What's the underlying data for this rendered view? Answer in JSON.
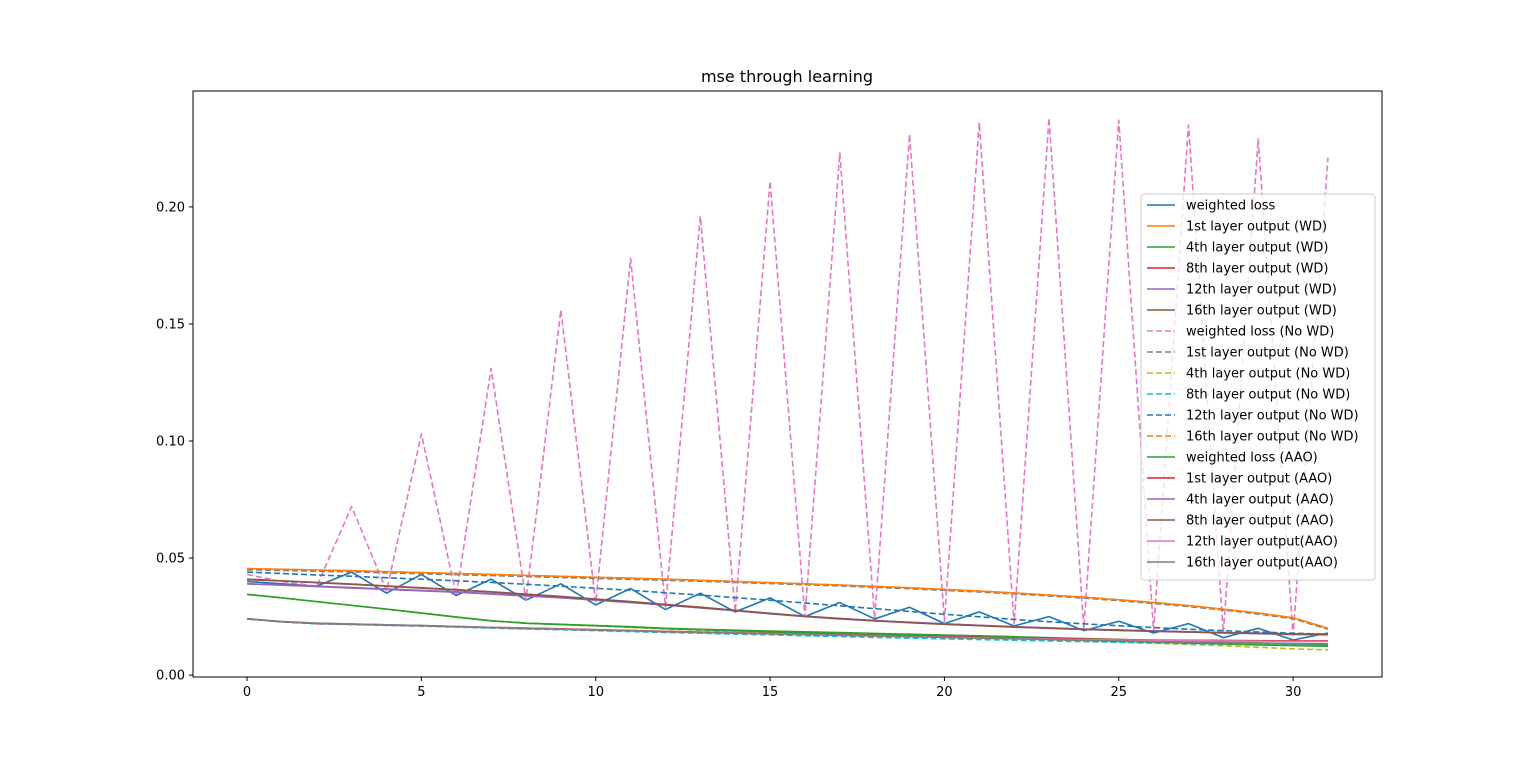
{
  "chart_data": {
    "type": "line",
    "title": "mse through learning",
    "xlabel": "",
    "ylabel": "",
    "xlim": [
      -1.55,
      32.55
    ],
    "ylim": [
      -0.0008,
      0.2495
    ],
    "xticks": [
      0,
      5,
      10,
      15,
      20,
      25,
      30
    ],
    "yticks": [
      "0.00",
      "0.05",
      "0.10",
      "0.15",
      "0.20"
    ],
    "ytick_values": [
      0.0,
      0.05,
      0.1,
      0.15,
      0.2
    ],
    "grid": false,
    "legend_position": "right",
    "x": [
      0,
      1,
      2,
      3,
      4,
      5,
      6,
      7,
      8,
      9,
      10,
      11,
      12,
      13,
      14,
      15,
      16,
      17,
      18,
      19,
      20,
      21,
      22,
      23,
      24,
      25,
      26,
      27,
      28,
      29,
      30,
      31
    ],
    "series": [
      {
        "name": "weighted loss",
        "color": "#1f77b4",
        "dash": "solid",
        "values": [
          0.04,
          0.039,
          0.038,
          0.044,
          0.035,
          0.043,
          0.034,
          0.041,
          0.032,
          0.039,
          0.03,
          0.037,
          0.028,
          0.035,
          0.027,
          0.033,
          0.025,
          0.031,
          0.024,
          0.029,
          0.022,
          0.027,
          0.021,
          0.025,
          0.019,
          0.023,
          0.018,
          0.022,
          0.016,
          0.02,
          0.015,
          0.018
        ]
      },
      {
        "name": "1st layer output (WD)",
        "color": "#ff7f0e",
        "dash": "solid",
        "values": [
          0.0455,
          0.0452,
          0.0449,
          0.0446,
          0.0442,
          0.0438,
          0.0434,
          0.043,
          0.0426,
          0.0422,
          0.0418,
          0.0414,
          0.041,
          0.0405,
          0.04,
          0.0395,
          0.039,
          0.0385,
          0.0379,
          0.0373,
          0.0366,
          0.0359,
          0.0351,
          0.0342,
          0.0333,
          0.0322,
          0.031,
          0.0297,
          0.0282,
          0.0265,
          0.0245,
          0.02
        ]
      },
      {
        "name": "4th layer output (WD)",
        "color": "#2ca02c",
        "dash": "solid",
        "values": [
          0.0345,
          0.033,
          0.0314,
          0.0298,
          0.0282,
          0.0265,
          0.0248,
          0.0232,
          0.0222,
          0.0217,
          0.0212,
          0.0207,
          0.02,
          0.0196,
          0.0192,
          0.0188,
          0.0185,
          0.0182,
          0.0178,
          0.0175,
          0.0171,
          0.0168,
          0.0164,
          0.016,
          0.0156,
          0.0152,
          0.0148,
          0.0144,
          0.014,
          0.0137,
          0.0133,
          0.013
        ]
      },
      {
        "name": "8th layer output (WD)",
        "color": "#d62728",
        "dash": "solid",
        "values": [
          0.024,
          0.0228,
          0.022,
          0.0217,
          0.0214,
          0.0211,
          0.0207,
          0.0203,
          0.02,
          0.0197,
          0.0193,
          0.019,
          0.0186,
          0.0183,
          0.018,
          0.0177,
          0.0174,
          0.0171,
          0.0168,
          0.0165,
          0.0163,
          0.016,
          0.0158,
          0.0155,
          0.0153,
          0.0151,
          0.0149,
          0.0148,
          0.0147,
          0.0146,
          0.0145,
          0.0145
        ]
      },
      {
        "name": "12th layer output (WD)",
        "color": "#9467bd",
        "dash": "solid",
        "values": [
          0.039,
          0.0384,
          0.0378,
          0.0372,
          0.0366,
          0.036,
          0.0354,
          0.0346,
          0.0338,
          0.033,
          0.032,
          0.031,
          0.0299,
          0.0287,
          0.0275,
          0.0262,
          0.025,
          0.024,
          0.0232,
          0.0225,
          0.0218,
          0.0212,
          0.0206,
          0.0201,
          0.0196,
          0.0192,
          0.0188,
          0.0184,
          0.018,
          0.0177,
          0.0174,
          0.0172
        ]
      },
      {
        "name": "16th layer output (WD)",
        "color": "#8c564b",
        "dash": "solid",
        "values": [
          0.041,
          0.0403,
          0.0396,
          0.0389,
          0.0381,
          0.0373,
          0.0365,
          0.0356,
          0.0346,
          0.0336,
          0.0325,
          0.0314,
          0.0302,
          0.029,
          0.0277,
          0.0264,
          0.0252,
          0.0242,
          0.0233,
          0.0225,
          0.0218,
          0.0212,
          0.0206,
          0.0201,
          0.0196,
          0.0192,
          0.0188,
          0.0185,
          0.0182,
          0.0179,
          0.0176,
          0.0175
        ]
      },
      {
        "name": "weighted loss (No WD)",
        "color": "#e377c2",
        "dash": "dashed",
        "values": [
          0.043,
          0.04,
          0.038,
          0.072,
          0.036,
          0.103,
          0.034,
          0.131,
          0.032,
          0.156,
          0.031,
          0.178,
          0.029,
          0.196,
          0.027,
          0.211,
          0.025,
          0.223,
          0.024,
          0.231,
          0.023,
          0.236,
          0.022,
          0.238,
          0.02,
          0.237,
          0.019,
          0.235,
          0.018,
          0.229,
          0.017,
          0.221
        ]
      },
      {
        "name": "1st layer output (No WD)",
        "color": "#7f7f7f",
        "dash": "dashed",
        "values": [
          0.045,
          0.0447,
          0.0444,
          0.0441,
          0.0437,
          0.0433,
          0.0429,
          0.0425,
          0.0421,
          0.0417,
          0.0413,
          0.0409,
          0.0405,
          0.0401,
          0.0396,
          0.0391,
          0.0386,
          0.0381,
          0.0375,
          0.0369,
          0.0362,
          0.0355,
          0.0347,
          0.0338,
          0.0329,
          0.0318,
          0.0306,
          0.0293,
          0.0278,
          0.0261,
          0.0241,
          0.0196
        ]
      },
      {
        "name": "4th layer output (No WD)",
        "color": "#bcbd22",
        "dash": "dashed",
        "values": [
          0.0345,
          0.033,
          0.0314,
          0.0298,
          0.0282,
          0.0265,
          0.0248,
          0.0232,
          0.0222,
          0.0216,
          0.021,
          0.0204,
          0.0197,
          0.0192,
          0.0187,
          0.0183,
          0.0179,
          0.0175,
          0.0171,
          0.0167,
          0.0163,
          0.0159,
          0.0155,
          0.0151,
          0.0146,
          0.0141,
          0.0136,
          0.0131,
          0.0125,
          0.0119,
          0.0112,
          0.0108
        ]
      },
      {
        "name": "8th layer output (No WD)",
        "color": "#17becf",
        "dash": "dashed",
        "values": [
          0.024,
          0.0227,
          0.0219,
          0.0216,
          0.0212,
          0.0209,
          0.0205,
          0.0201,
          0.0197,
          0.0194,
          0.019,
          0.0186,
          0.0182,
          0.0179,
          0.0175,
          0.0172,
          0.0168,
          0.0165,
          0.0161,
          0.0158,
          0.0155,
          0.0152,
          0.0149,
          0.0146,
          0.0143,
          0.014,
          0.0137,
          0.0135,
          0.0132,
          0.013,
          0.0128,
          0.0126
        ]
      },
      {
        "name": "12th layer output (No WD)",
        "color": "#1f77b4",
        "dash": "dashed",
        "values": [
          0.044,
          0.0434,
          0.0428,
          0.0422,
          0.0416,
          0.041,
          0.0403,
          0.0396,
          0.0388,
          0.038,
          0.0371,
          0.0362,
          0.0352,
          0.0342,
          0.0331,
          0.032,
          0.0308,
          0.0296,
          0.0284,
          0.0272,
          0.026,
          0.0249,
          0.0238,
          0.0228,
          0.0219,
          0.0211,
          0.0203,
          0.0196,
          0.019,
          0.0184,
          0.0179,
          0.0175
        ]
      },
      {
        "name": "16th layer output (No WD)",
        "color": "#ff7f0e",
        "dash": "dashed",
        "values": [
          0.0455,
          0.0452,
          0.0449,
          0.0446,
          0.0442,
          0.0438,
          0.0434,
          0.043,
          0.0426,
          0.0422,
          0.0418,
          0.0414,
          0.041,
          0.0405,
          0.04,
          0.0395,
          0.039,
          0.0385,
          0.0379,
          0.0373,
          0.0366,
          0.0359,
          0.0351,
          0.0342,
          0.0333,
          0.0322,
          0.031,
          0.0297,
          0.0282,
          0.0265,
          0.0245,
          0.02
        ]
      },
      {
        "name": "weighted loss (AAO)",
        "color": "#2ca02c",
        "dash": "solid",
        "values": [
          0.0345,
          0.033,
          0.0314,
          0.0298,
          0.0282,
          0.0265,
          0.0248,
          0.0232,
          0.0222,
          0.0216,
          0.0211,
          0.0205,
          0.0199,
          0.0194,
          0.0189,
          0.0185,
          0.0181,
          0.0177,
          0.0173,
          0.0169,
          0.0165,
          0.0161,
          0.0157,
          0.0153,
          0.0149,
          0.0145,
          0.0141,
          0.0137,
          0.0133,
          0.0129,
          0.0126,
          0.0123
        ]
      },
      {
        "name": "1st layer output (AAO)",
        "color": "#d62728",
        "dash": "solid",
        "values": [
          0.024,
          0.0228,
          0.0221,
          0.0218,
          0.0215,
          0.0212,
          0.0208,
          0.0204,
          0.0201,
          0.0198,
          0.0194,
          0.0191,
          0.0187,
          0.0184,
          0.0181,
          0.0178,
          0.0175,
          0.0172,
          0.0169,
          0.0166,
          0.0164,
          0.0161,
          0.0159,
          0.0156,
          0.0154,
          0.0152,
          0.015,
          0.0149,
          0.0148,
          0.0147,
          0.0146,
          0.0146
        ]
      },
      {
        "name": "4th layer output (AAO)",
        "color": "#9467bd",
        "dash": "solid",
        "values": [
          0.039,
          0.0385,
          0.038,
          0.0374,
          0.0368,
          0.0362,
          0.0356,
          0.0348,
          0.034,
          0.0331,
          0.0321,
          0.0311,
          0.03,
          0.0288,
          0.0276,
          0.0263,
          0.0251,
          0.0241,
          0.0233,
          0.0226,
          0.0219,
          0.0213,
          0.0207,
          0.0202,
          0.0197,
          0.0193,
          0.0189,
          0.0185,
          0.0181,
          0.0178,
          0.0175,
          0.0173
        ]
      },
      {
        "name": "8th layer output (AAO)",
        "color": "#8c564b",
        "dash": "solid",
        "values": [
          0.0408,
          0.0402,
          0.0395,
          0.0388,
          0.038,
          0.0372,
          0.0364,
          0.0355,
          0.0345,
          0.0335,
          0.0324,
          0.0313,
          0.0301,
          0.0289,
          0.0276,
          0.0263,
          0.0251,
          0.0241,
          0.0232,
          0.0224,
          0.0217,
          0.0211,
          0.0205,
          0.02,
          0.0195,
          0.0191,
          0.0187,
          0.0184,
          0.0181,
          0.0178,
          0.0176,
          0.0174
        ]
      },
      {
        "name": "12th layer output(AAO)",
        "color": "#e377c2",
        "dash": "solid",
        "values": [
          0.0241,
          0.0229,
          0.0222,
          0.0218,
          0.0215,
          0.0212,
          0.0208,
          0.0204,
          0.02,
          0.0197,
          0.0193,
          0.019,
          0.0186,
          0.0183,
          0.018,
          0.0177,
          0.0174,
          0.0171,
          0.0168,
          0.0165,
          0.0162,
          0.0159,
          0.0157,
          0.0154,
          0.0152,
          0.015,
          0.0148,
          0.0147,
          0.0146,
          0.0145,
          0.0144,
          0.0144
        ]
      },
      {
        "name": "16th layer output(AAO)",
        "color": "#7f7f7f",
        "dash": "solid",
        "values": [
          0.0241,
          0.0229,
          0.0222,
          0.0218,
          0.0214,
          0.0211,
          0.0207,
          0.0203,
          0.0199,
          0.0196,
          0.0192,
          0.0189,
          0.0185,
          0.0182,
          0.0179,
          0.0176,
          0.0173,
          0.017,
          0.0167,
          0.0164,
          0.0161,
          0.0158,
          0.0155,
          0.0152,
          0.0149,
          0.0146,
          0.0143,
          0.0141,
          0.0139,
          0.0137,
          0.0135,
          0.0134
        ]
      }
    ]
  }
}
